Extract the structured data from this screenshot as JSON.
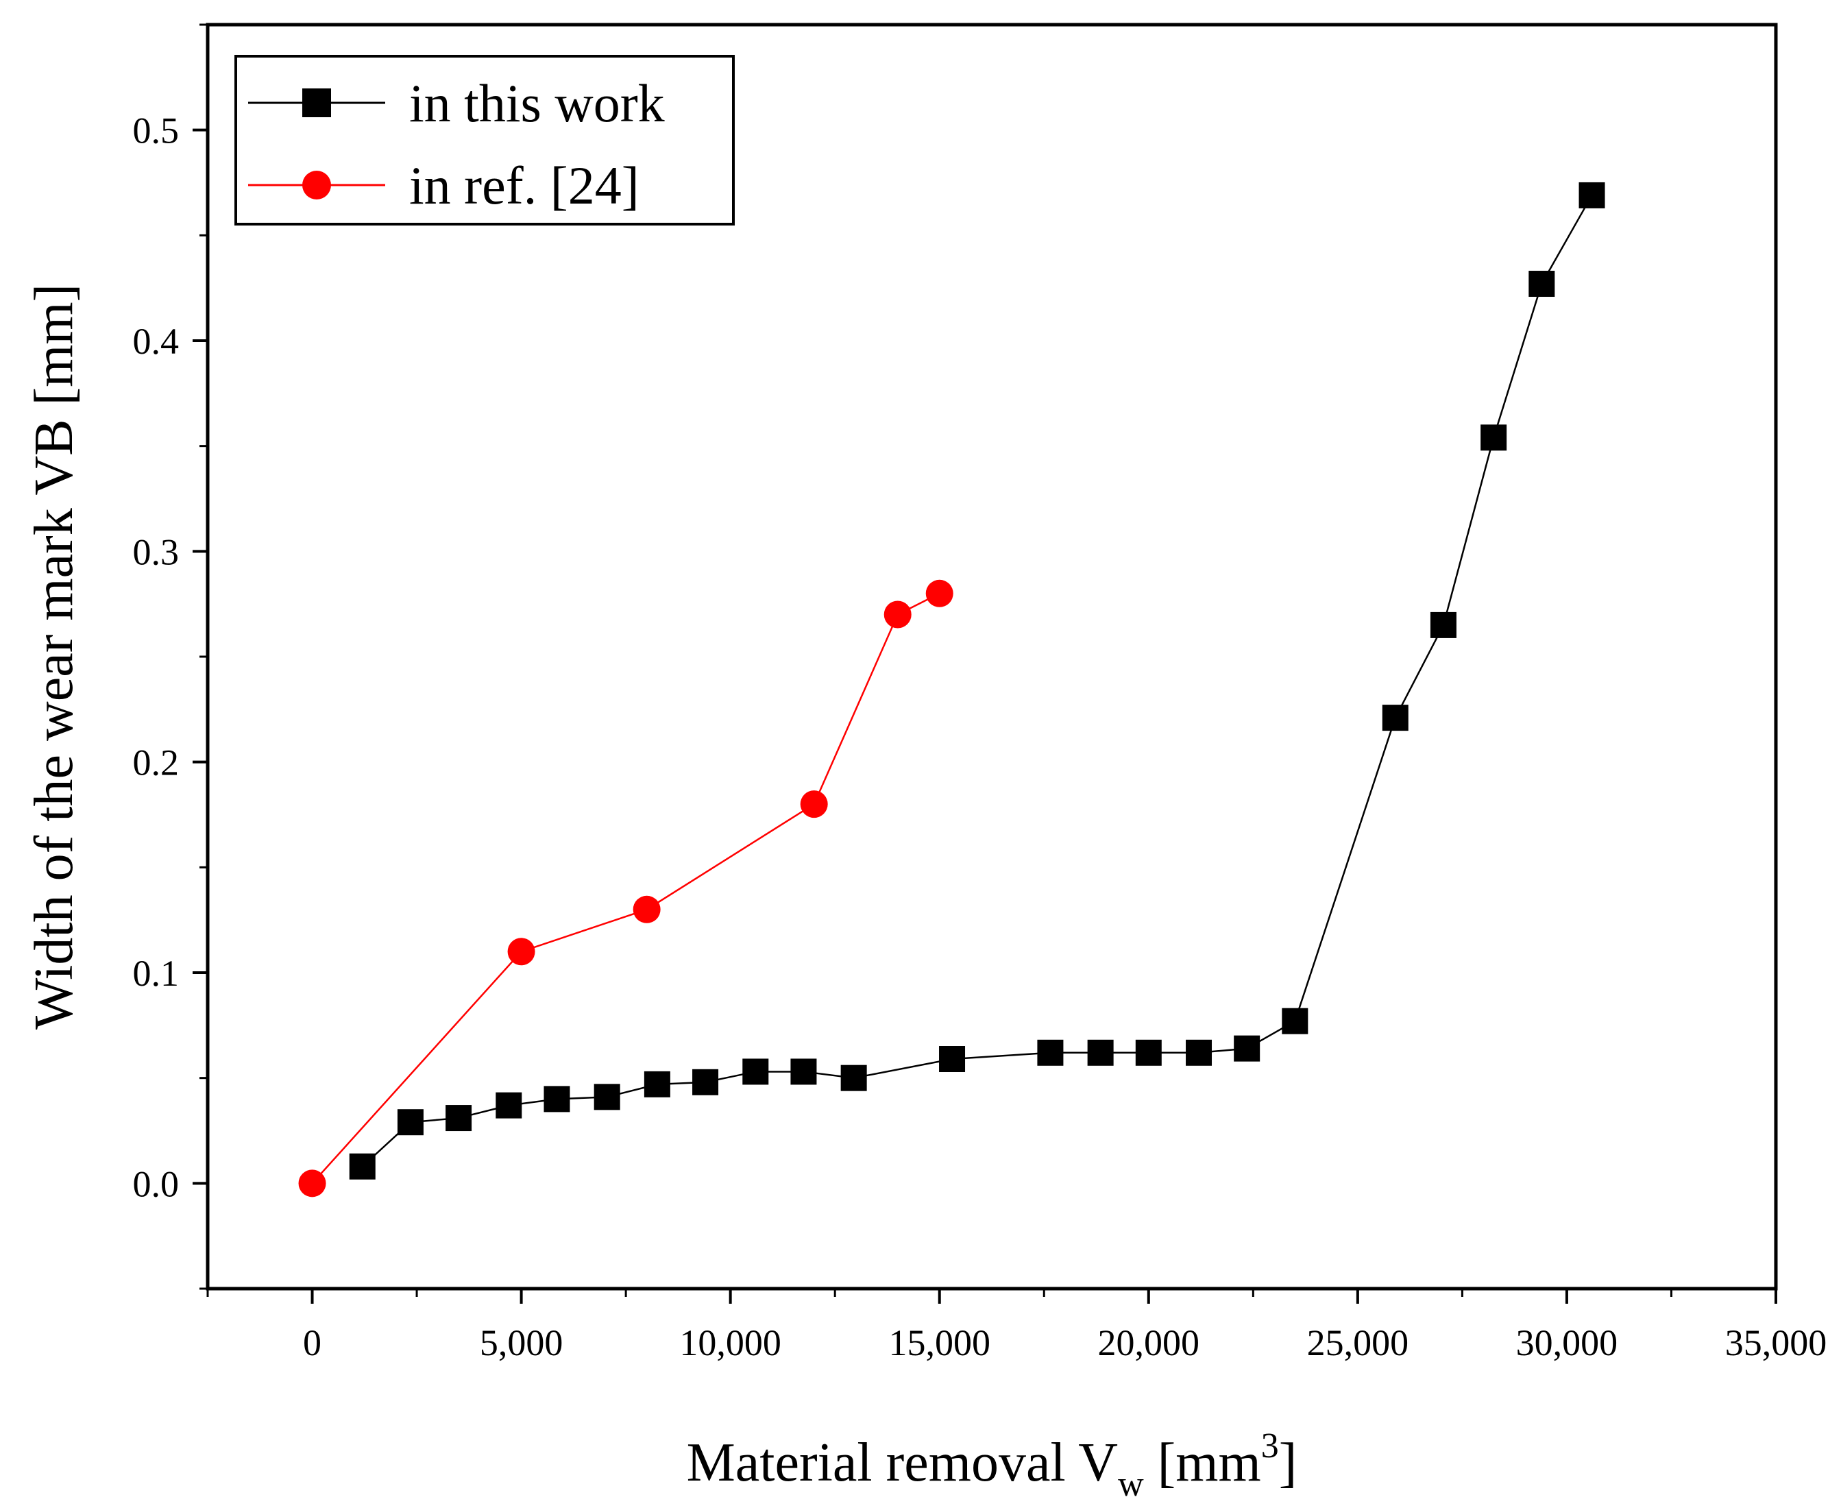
{
  "chart_data": {
    "type": "line",
    "xlabel": {
      "main": "Material removal V",
      "sub": "w",
      "unit_open": " [mm",
      "sup": "3",
      "unit_close": "]"
    },
    "ylabel": "Width of the wear mark VB [mm]",
    "xlim": [
      -2500,
      35000
    ],
    "ylim": [
      -0.05,
      0.55
    ],
    "x_ticks": [
      0,
      5000,
      10000,
      15000,
      20000,
      25000,
      30000,
      35000
    ],
    "x_tick_labels": [
      "0",
      "5,000",
      "10,000",
      "15,000",
      "20,000",
      "25,000",
      "30,000",
      "35,000"
    ],
    "y_ticks": [
      0.0,
      0.1,
      0.2,
      0.3,
      0.4,
      0.5
    ],
    "y_tick_labels": [
      "0.0",
      "0.1",
      "0.2",
      "0.3",
      "0.4",
      "0.5"
    ],
    "grid": false,
    "legend_position": "top-left",
    "series": [
      {
        "name": "in this work",
        "color": "#000000",
        "marker": "square",
        "x": [
          1200,
          2350,
          3500,
          4700,
          5850,
          7050,
          8250,
          9400,
          10600,
          11750,
          12950,
          15300,
          17650,
          18850,
          20000,
          21200,
          22350,
          23500,
          25900,
          27050,
          28250,
          29400,
          30600
        ],
        "values": [
          0.008,
          0.029,
          0.031,
          0.037,
          0.04,
          0.041,
          0.047,
          0.048,
          0.053,
          0.053,
          0.05,
          0.059,
          0.062,
          0.062,
          0.062,
          0.062,
          0.064,
          0.077,
          0.221,
          0.265,
          0.354,
          0.427,
          0.469
        ]
      },
      {
        "name": "in ref. [24]",
        "color": "#ff0000",
        "marker": "circle",
        "x": [
          0,
          5000,
          8000,
          12000,
          14000,
          15000
        ],
        "values": [
          0.0,
          0.11,
          0.13,
          0.18,
          0.27,
          0.28
        ]
      }
    ]
  }
}
